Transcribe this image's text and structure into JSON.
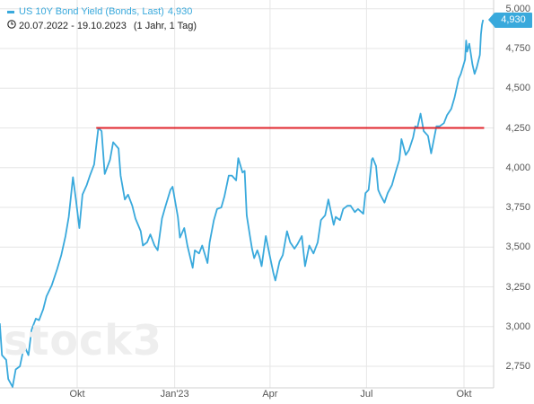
{
  "legend": {
    "label": "US 10Y Bond Yield (Bonds, Last)",
    "last": "4,930"
  },
  "period": {
    "range": "20.07.2022 - 19.10.2023",
    "interval": "(1 Jahr, 1 Tag)"
  },
  "watermark": "stock3",
  "colors": {
    "line": "#39a9dc",
    "level": "#e0252c",
    "grid": "#e6e6e6",
    "tick_text": "#555555"
  },
  "chart_data": {
    "type": "line",
    "title": "US 10Y Bond Yield (Bonds, Last)",
    "ylim": [
      2.6,
      5.0
    ],
    "y_ticks": [
      2.75,
      3.0,
      3.25,
      3.5,
      3.75,
      4.0,
      4.25,
      4.5,
      4.75,
      5.0
    ],
    "y_tick_labels": [
      "2,750",
      "3,000",
      "3,250",
      "3,500",
      "3,750",
      "4,000",
      "4,250",
      "4,500",
      "4,750",
      "5,000"
    ],
    "x_ticks": [
      {
        "date": "2022-10-01",
        "label": "Okt"
      },
      {
        "date": "2023-01-01",
        "label": "Jan'23"
      },
      {
        "date": "2023-04-01",
        "label": "Apr"
      },
      {
        "date": "2023-07-01",
        "label": "Jul"
      },
      {
        "date": "2023-10-01",
        "label": "Okt"
      }
    ],
    "last_value": 4.93,
    "last_label": "4,930",
    "horizontal_level": {
      "value": 4.25,
      "start_date": "2022-10-19",
      "end_date": "2023-10-20"
    },
    "series": [
      {
        "values": [
          [
            "2022-07-20",
            3.02
          ],
          [
            "2022-07-22",
            2.82
          ],
          [
            "2022-07-26",
            2.79
          ],
          [
            "2022-07-28",
            2.67
          ],
          [
            "2022-08-01",
            2.62
          ],
          [
            "2022-08-04",
            2.73
          ],
          [
            "2022-08-08",
            2.75
          ],
          [
            "2022-08-12",
            2.88
          ],
          [
            "2022-08-16",
            2.82
          ],
          [
            "2022-08-19",
            2.98
          ],
          [
            "2022-08-23",
            3.05
          ],
          [
            "2022-08-26",
            3.04
          ],
          [
            "2022-08-30",
            3.11
          ],
          [
            "2022-09-02",
            3.19
          ],
          [
            "2022-09-07",
            3.26
          ],
          [
            "2022-09-12",
            3.36
          ],
          [
            "2022-09-16",
            3.45
          ],
          [
            "2022-09-20",
            3.57
          ],
          [
            "2022-09-23",
            3.69
          ],
          [
            "2022-09-27",
            3.94
          ],
          [
            "2022-09-30",
            3.79
          ],
          [
            "2022-10-03",
            3.62
          ],
          [
            "2022-10-06",
            3.83
          ],
          [
            "2022-10-10",
            3.89
          ],
          [
            "2022-10-13",
            3.95
          ],
          [
            "2022-10-17",
            4.02
          ],
          [
            "2022-10-19",
            4.14
          ],
          [
            "2022-10-21",
            4.25
          ],
          [
            "2022-10-24",
            4.23
          ],
          [
            "2022-10-27",
            3.96
          ],
          [
            "2022-11-01",
            4.05
          ],
          [
            "2022-11-04",
            4.16
          ],
          [
            "2022-11-09",
            4.12
          ],
          [
            "2022-11-11",
            3.95
          ],
          [
            "2022-11-15",
            3.8
          ],
          [
            "2022-11-18",
            3.83
          ],
          [
            "2022-11-22",
            3.76
          ],
          [
            "2022-11-25",
            3.68
          ],
          [
            "2022-11-30",
            3.6
          ],
          [
            "2022-12-02",
            3.51
          ],
          [
            "2022-12-06",
            3.53
          ],
          [
            "2022-12-09",
            3.58
          ],
          [
            "2022-12-13",
            3.51
          ],
          [
            "2022-12-16",
            3.48
          ],
          [
            "2022-12-20",
            3.68
          ],
          [
            "2022-12-23",
            3.75
          ],
          [
            "2022-12-28",
            3.86
          ],
          [
            "2022-12-30",
            3.88
          ],
          [
            "2023-01-04",
            3.69
          ],
          [
            "2023-01-06",
            3.56
          ],
          [
            "2023-01-10",
            3.62
          ],
          [
            "2023-01-13",
            3.51
          ],
          [
            "2023-01-18",
            3.37
          ],
          [
            "2023-01-20",
            3.48
          ],
          [
            "2023-01-24",
            3.46
          ],
          [
            "2023-01-27",
            3.51
          ],
          [
            "2023-02-01",
            3.4
          ],
          [
            "2023-02-03",
            3.53
          ],
          [
            "2023-02-07",
            3.67
          ],
          [
            "2023-02-10",
            3.74
          ],
          [
            "2023-02-14",
            3.75
          ],
          [
            "2023-02-17",
            3.82
          ],
          [
            "2023-02-21",
            3.95
          ],
          [
            "2023-02-24",
            3.95
          ],
          [
            "2023-02-28",
            3.92
          ],
          [
            "2023-03-02",
            4.06
          ],
          [
            "2023-03-06",
            3.97
          ],
          [
            "2023-03-08",
            3.98
          ],
          [
            "2023-03-10",
            3.7
          ],
          [
            "2023-03-13",
            3.57
          ],
          [
            "2023-03-15",
            3.49
          ],
          [
            "2023-03-17",
            3.43
          ],
          [
            "2023-03-20",
            3.48
          ],
          [
            "2023-03-22",
            3.44
          ],
          [
            "2023-03-24",
            3.38
          ],
          [
            "2023-03-28",
            3.57
          ],
          [
            "2023-03-31",
            3.47
          ],
          [
            "2023-04-04",
            3.34
          ],
          [
            "2023-04-06",
            3.29
          ],
          [
            "2023-04-10",
            3.41
          ],
          [
            "2023-04-13",
            3.45
          ],
          [
            "2023-04-17",
            3.6
          ],
          [
            "2023-04-20",
            3.53
          ],
          [
            "2023-04-24",
            3.49
          ],
          [
            "2023-04-27",
            3.52
          ],
          [
            "2023-05-01",
            3.57
          ],
          [
            "2023-05-04",
            3.38
          ],
          [
            "2023-05-08",
            3.51
          ],
          [
            "2023-05-12",
            3.46
          ],
          [
            "2023-05-16",
            3.53
          ],
          [
            "2023-05-19",
            3.67
          ],
          [
            "2023-05-23",
            3.7
          ],
          [
            "2023-05-26",
            3.8
          ],
          [
            "2023-05-31",
            3.64
          ],
          [
            "2023-06-02",
            3.69
          ],
          [
            "2023-06-06",
            3.67
          ],
          [
            "2023-06-09",
            3.74
          ],
          [
            "2023-06-13",
            3.76
          ],
          [
            "2023-06-16",
            3.76
          ],
          [
            "2023-06-20",
            3.72
          ],
          [
            "2023-06-23",
            3.74
          ],
          [
            "2023-06-28",
            3.71
          ],
          [
            "2023-06-30",
            3.84
          ],
          [
            "2023-07-03",
            3.86
          ],
          [
            "2023-07-06",
            4.05
          ],
          [
            "2023-07-07",
            4.06
          ],
          [
            "2023-07-10",
            4.01
          ],
          [
            "2023-07-12",
            3.86
          ],
          [
            "2023-07-14",
            3.83
          ],
          [
            "2023-07-18",
            3.78
          ],
          [
            "2023-07-21",
            3.84
          ],
          [
            "2023-07-25",
            3.89
          ],
          [
            "2023-07-28",
            3.96
          ],
          [
            "2023-08-01",
            4.05
          ],
          [
            "2023-08-03",
            4.18
          ],
          [
            "2023-08-07",
            4.08
          ],
          [
            "2023-08-10",
            4.11
          ],
          [
            "2023-08-14",
            4.19
          ],
          [
            "2023-08-16",
            4.26
          ],
          [
            "2023-08-18",
            4.25
          ],
          [
            "2023-08-21",
            4.34
          ],
          [
            "2023-08-24",
            4.23
          ],
          [
            "2023-08-28",
            4.2
          ],
          [
            "2023-08-31",
            4.09
          ],
          [
            "2023-09-05",
            4.26
          ],
          [
            "2023-09-08",
            4.26
          ],
          [
            "2023-09-12",
            4.28
          ],
          [
            "2023-09-15",
            4.33
          ],
          [
            "2023-09-19",
            4.37
          ],
          [
            "2023-09-22",
            4.44
          ],
          [
            "2023-09-26",
            4.56
          ],
          [
            "2023-09-28",
            4.59
          ],
          [
            "2023-10-02",
            4.68
          ],
          [
            "2023-10-03",
            4.8
          ],
          [
            "2023-10-04",
            4.73
          ],
          [
            "2023-10-06",
            4.78
          ],
          [
            "2023-10-09",
            4.65
          ],
          [
            "2023-10-11",
            4.59
          ],
          [
            "2023-10-13",
            4.63
          ],
          [
            "2023-10-16",
            4.71
          ],
          [
            "2023-10-17",
            4.84
          ],
          [
            "2023-10-18",
            4.9
          ],
          [
            "2023-10-19",
            4.93
          ]
        ]
      }
    ]
  }
}
